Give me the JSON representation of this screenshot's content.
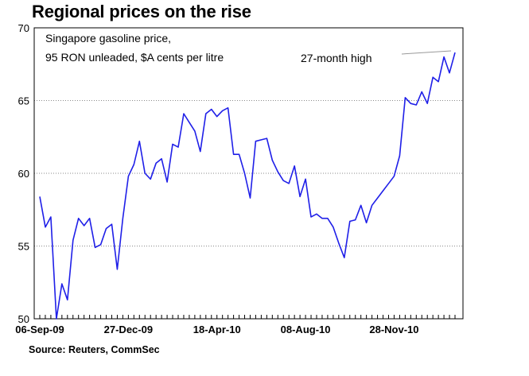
{
  "title": "Regional prices on the rise",
  "source": "Source: Reuters, CommSec",
  "chart_data": {
    "type": "line",
    "title": "Regional prices on the rise",
    "subtitle_lines": [
      "Singapore gasoline price,",
      "95 RON unleaded, $A cents per litre"
    ],
    "xlabel": "",
    "ylabel": "",
    "ylim": [
      50,
      70
    ],
    "yticks": [
      50,
      55,
      60,
      65,
      70
    ],
    "xtick_labels": [
      "06-Sep-09",
      "27-Dec-09",
      "18-Apr-10",
      "08-Aug-10",
      "28-Nov-10"
    ],
    "grid": "horizontal dotted",
    "annotation": "27-month high",
    "line_color": "#1f1fe8",
    "series": [
      {
        "name": "",
        "values": [
          58.4,
          56.3,
          57.0,
          50.0,
          52.4,
          51.3,
          55.4,
          56.9,
          56.4,
          56.9,
          54.9,
          55.1,
          56.2,
          56.5,
          53.4,
          56.9,
          59.8,
          60.6,
          62.2,
          60.0,
          59.6,
          60.7,
          61.0,
          59.4,
          62.0,
          61.8,
          64.1,
          63.5,
          62.9,
          61.5,
          64.1,
          64.4,
          63.9,
          64.3,
          64.5,
          61.3,
          61.3,
          60.0,
          58.3,
          62.2,
          62.3,
          62.4,
          60.9,
          60.1,
          59.5,
          59.3,
          60.5,
          58.4,
          59.6,
          57.0,
          57.2,
          56.9,
          56.9,
          56.3,
          55.2,
          54.2,
          56.7,
          56.8,
          57.8,
          56.6,
          57.8,
          58.3,
          58.8,
          59.3,
          59.8,
          61.2,
          65.2,
          64.8,
          64.7,
          65.6,
          64.8,
          66.6,
          66.3,
          68.0,
          66.9,
          68.3
        ]
      }
    ]
  }
}
